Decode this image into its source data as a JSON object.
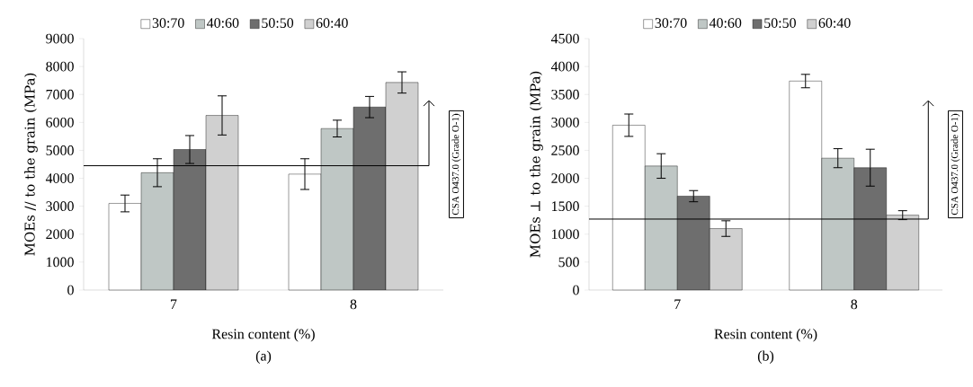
{
  "chart_data": [
    {
      "type": "bar",
      "title": "(a)",
      "xlabel": "Resin content (%)",
      "ylabel": "MOEs // to the grain (MPa)",
      "categories": [
        "7",
        "8"
      ],
      "series": [
        {
          "name": "30:70",
          "color": "#ffffff",
          "values": [
            3100,
            4150
          ],
          "errors": [
            300,
            550
          ]
        },
        {
          "name": "40:60",
          "color": "#bfc7c5",
          "values": [
            4200,
            5780
          ],
          "errors": [
            500,
            300
          ]
        },
        {
          "name": "50:50",
          "color": "#6e6e6e",
          "values": [
            5030,
            6550
          ],
          "errors": [
            500,
            380
          ]
        },
        {
          "name": "60:40",
          "color": "#d0d0d0",
          "values": [
            6250,
            7430
          ],
          "errors": [
            700,
            380
          ]
        }
      ],
      "ylim": [
        0,
        9000
      ],
      "yticks": [
        0,
        1000,
        2000,
        3000,
        4000,
        5000,
        6000,
        7000,
        8000,
        9000
      ],
      "legend": "top",
      "ref_lines": [
        {
          "axis": "y",
          "value": 4450,
          "label": "CSA O437.0 (Grade O-1)",
          "color": "#000000"
        }
      ]
    },
    {
      "type": "bar",
      "title": "(b)",
      "xlabel": "Resin content (%)",
      "ylabel": "MOEs ⊥ to the grain (MPa)",
      "categories": [
        "7",
        "8"
      ],
      "series": [
        {
          "name": "30:70",
          "color": "#ffffff",
          "values": [
            2950,
            3740
          ],
          "errors": [
            200,
            120
          ]
        },
        {
          "name": "40:60",
          "color": "#bfc7c5",
          "values": [
            2220,
            2360
          ],
          "errors": [
            220,
            170
          ]
        },
        {
          "name": "50:50",
          "color": "#6e6e6e",
          "values": [
            1680,
            2190
          ],
          "errors": [
            100,
            330
          ]
        },
        {
          "name": "60:40",
          "color": "#d0d0d0",
          "values": [
            1100,
            1340
          ],
          "errors": [
            140,
            80
          ]
        }
      ],
      "ylim": [
        0,
        4500
      ],
      "yticks": [
        0,
        500,
        1000,
        1500,
        2000,
        2500,
        3000,
        3500,
        4000,
        4500
      ],
      "legend": "top",
      "ref_lines": [
        {
          "axis": "y",
          "value": 1270,
          "label": "CSA O437.0 (Grade O-1)",
          "color": "#000000"
        }
      ]
    }
  ]
}
